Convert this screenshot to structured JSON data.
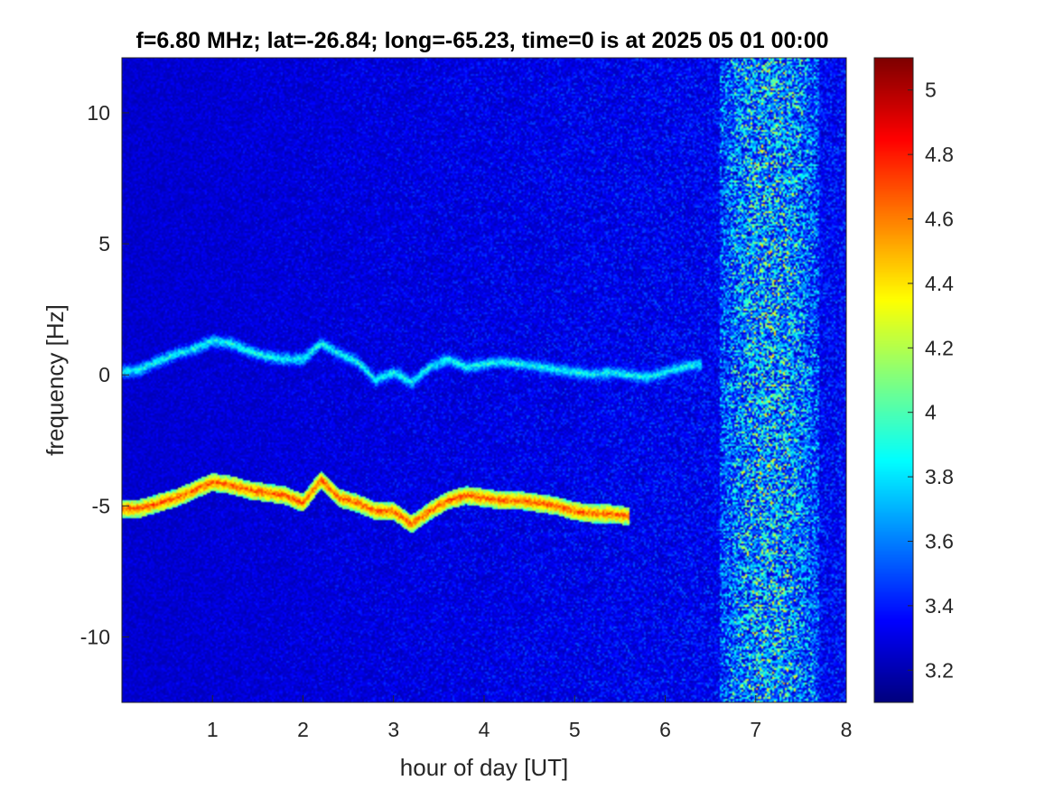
{
  "chart_data": {
    "type": "heatmap",
    "title": "f=6.80 MHz;  lat=-26.84; long=-65.23, time=0 is at 2025 05 01 00:00",
    "xlabel": "hour of day [UT]",
    "ylabel": "frequency [Hz]",
    "xlim": [
      0,
      8
    ],
    "ylim": [
      -12.5,
      12.1
    ],
    "x_ticks": [
      1,
      2,
      3,
      4,
      5,
      6,
      7,
      8
    ],
    "x_tick_labels": [
      "1",
      "2",
      "3",
      "4",
      "5",
      "6",
      "7",
      "8"
    ],
    "y_ticks": [
      10,
      5,
      0,
      -5,
      -10
    ],
    "y_tick_labels": [
      "10",
      "5",
      "0",
      "-5",
      "-10"
    ],
    "colorbar": {
      "colormap": "jet",
      "range": [
        3.1,
        5.1
      ],
      "ticks": [
        5,
        4.8,
        4.6,
        4.4,
        4.2,
        4,
        3.8,
        3.6,
        3.4,
        3.2
      ],
      "tick_labels": [
        "5",
        "4.8",
        "4.6",
        "4.4",
        "4.2",
        "4",
        "3.8",
        "3.6",
        "3.4",
        "3.2"
      ]
    },
    "background_level": 3.2,
    "noise_band": {
      "x_start": 6.6,
      "x_end": 7.7,
      "peak_level": 4.1
    },
    "series": [
      {
        "x": [
          0,
          0.2,
          0.4,
          0.6,
          0.8,
          1.0,
          1.2,
          1.4,
          1.6,
          1.8,
          2.0,
          2.2,
          2.4,
          2.6,
          2.8,
          3.0,
          3.2,
          3.4,
          3.6,
          3.8,
          4.0,
          4.2,
          4.4,
          4.6,
          4.8,
          5.0,
          5.2,
          5.4,
          5.6,
          5.8,
          6.0,
          6.2,
          6.4
        ],
        "y": [
          0.1,
          0.2,
          0.5,
          0.8,
          1.0,
          1.3,
          1.2,
          0.9,
          0.7,
          0.6,
          0.6,
          1.2,
          0.8,
          0.5,
          -0.2,
          0.1,
          -0.3,
          0.3,
          0.6,
          0.3,
          0.4,
          0.5,
          0.4,
          0.3,
          0.2,
          0.1,
          0.0,
          0.1,
          0.0,
          -0.1,
          0.1,
          0.3,
          0.4
        ],
        "level": 3.9
      },
      {
        "x": [
          0,
          0.2,
          0.4,
          0.6,
          0.8,
          1.0,
          1.2,
          1.4,
          1.6,
          1.8,
          2.0,
          2.2,
          2.4,
          2.6,
          2.8,
          3.0,
          3.2,
          3.4,
          3.6,
          3.8,
          4.0,
          4.2,
          4.4,
          4.6,
          4.8,
          5.0,
          5.2,
          5.4,
          5.6
        ],
        "y": [
          -5.1,
          -5.1,
          -4.9,
          -4.7,
          -4.4,
          -4.1,
          -4.2,
          -4.4,
          -4.5,
          -4.6,
          -4.9,
          -4.0,
          -4.7,
          -4.9,
          -5.2,
          -5.2,
          -5.7,
          -5.2,
          -4.8,
          -4.6,
          -4.7,
          -4.8,
          -4.8,
          -4.9,
          -5.0,
          -5.2,
          -5.3,
          -5.3,
          -5.4
        ],
        "level": 4.7
      }
    ]
  }
}
